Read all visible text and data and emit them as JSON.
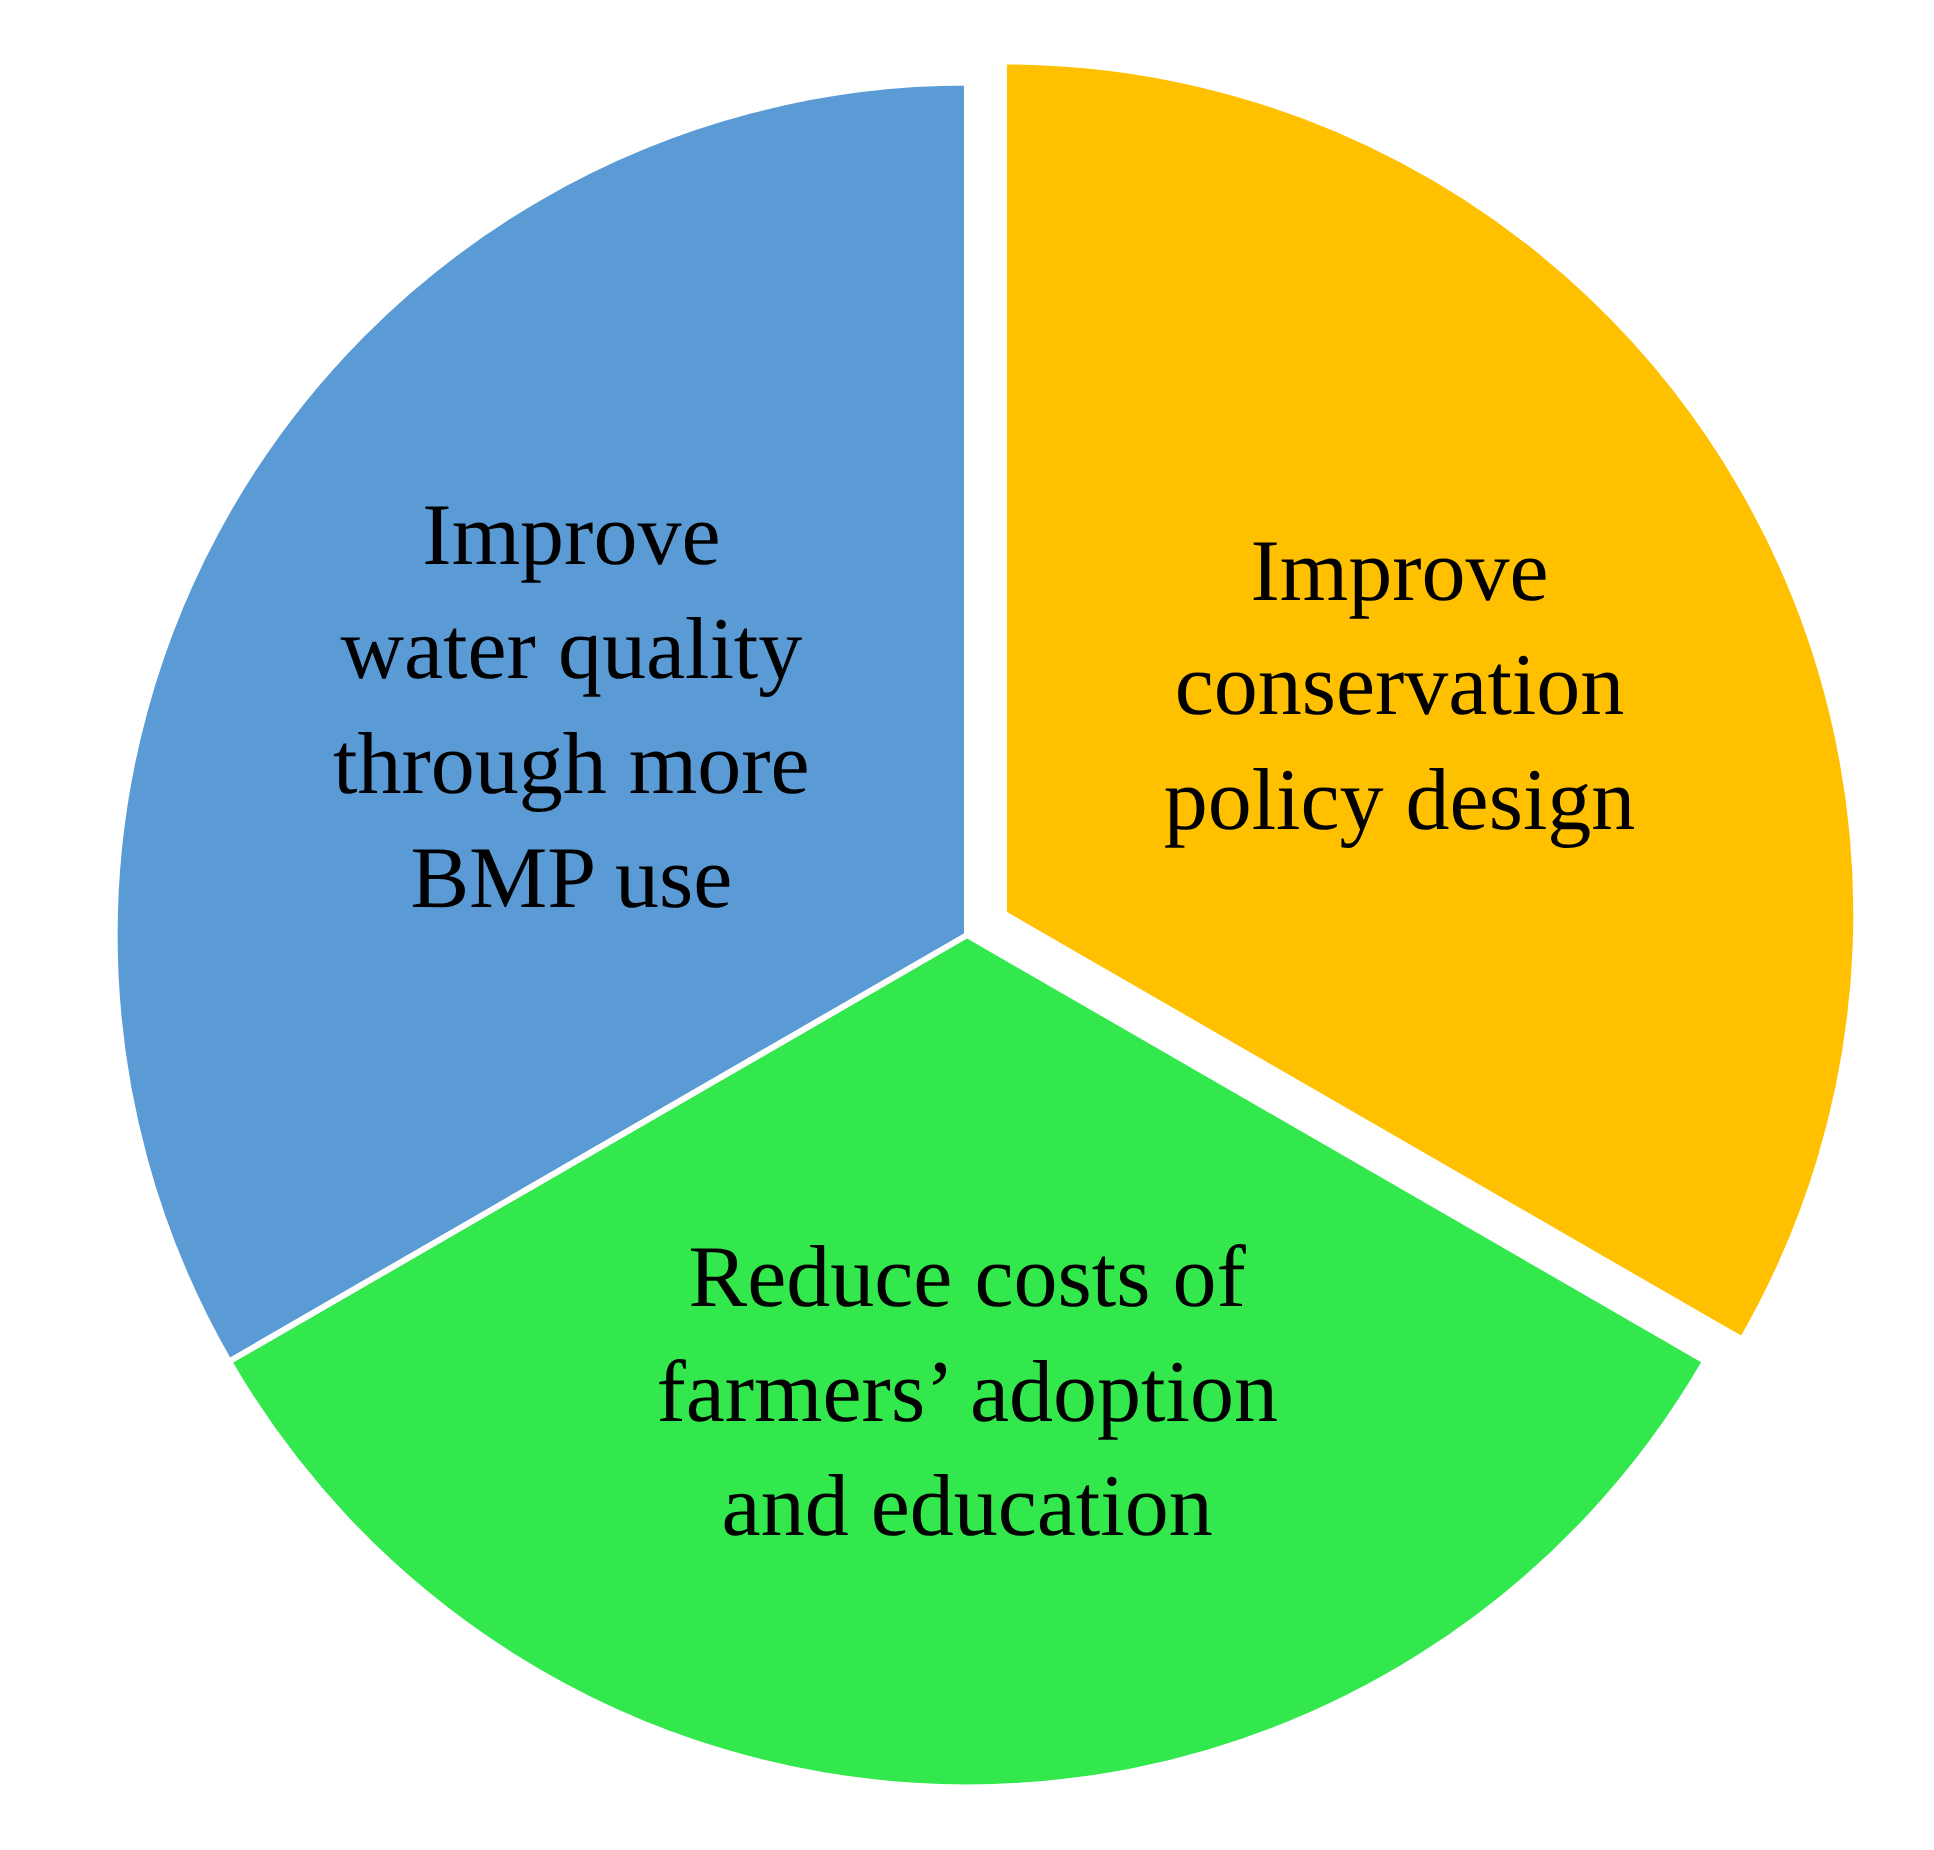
{
  "chart_data": {
    "type": "pie",
    "categories": [
      "Improve\nconservation\npolicy design",
      "Reduce costs of\nfarmers’ adoption\nand education",
      "Improve\nwater quality\nthrough more\nBMP use"
    ],
    "values": [
      33.33,
      33.33,
      33.34
    ],
    "colors": [
      "#ffc000",
      "#33e84d",
      "#5b9bd5"
    ],
    "legend": false
  }
}
